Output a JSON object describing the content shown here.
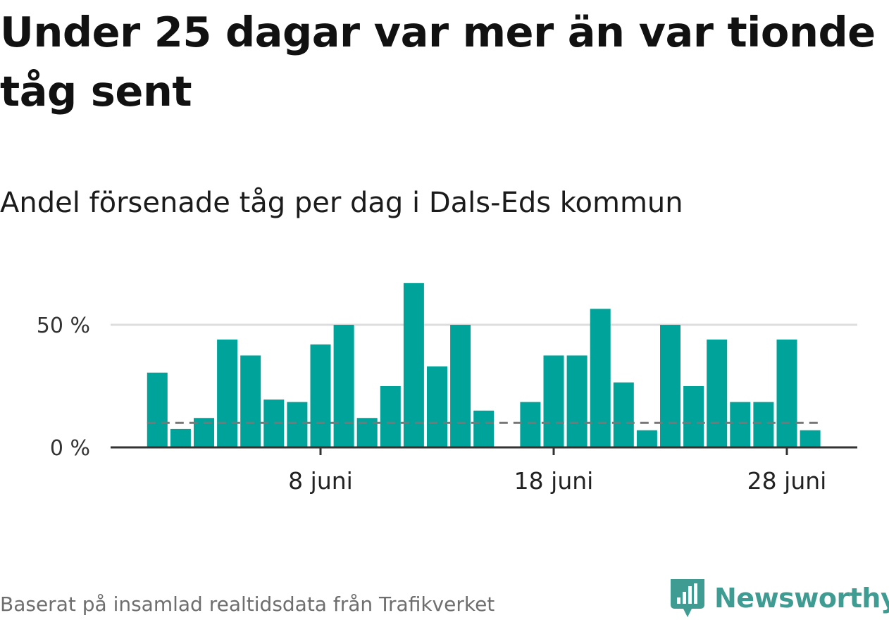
{
  "title": "Under 25 dagar var mer än var tionde tåg sent",
  "subtitle": "Andel försenade tåg per dag i Dals-Eds kommun",
  "footer": "Baserat på insamlad realtidsdata från Trafikverket",
  "brand": "Newsworthy",
  "colors": {
    "bar": "#00a39a",
    "reference_line": "#777777",
    "gridline": "#dddddd",
    "axis": "#333333",
    "brand": "#3f9c93"
  },
  "chart_data": {
    "type": "bar",
    "x_unit": "day of June",
    "x": [
      1,
      2,
      3,
      4,
      5,
      6,
      7,
      8,
      9,
      10,
      11,
      12,
      13,
      14,
      15,
      16,
      17,
      18,
      19,
      20,
      21,
      22,
      23,
      24,
      25,
      26,
      27,
      28,
      29
    ],
    "values": [
      30.5,
      7.5,
      12,
      44,
      37.5,
      19.5,
      18.5,
      42,
      50,
      12,
      25,
      67,
      33,
      50,
      15,
      null,
      18.5,
      37.5,
      37.5,
      56.5,
      26.5,
      7,
      50,
      25,
      44,
      18.5,
      18.5,
      44,
      7
    ],
    "reference_line": 10,
    "ylim": [
      0,
      70
    ],
    "y_ticks": [
      {
        "value": 0,
        "label": "0 %"
      },
      {
        "value": 50,
        "label": "50 %"
      }
    ],
    "x_ticks": [
      {
        "value": 8,
        "label": "8 juni"
      },
      {
        "value": 18,
        "label": "18 juni"
      },
      {
        "value": 28,
        "label": "28 juni"
      }
    ],
    "xlabel": "",
    "ylabel": "",
    "grid": true
  }
}
